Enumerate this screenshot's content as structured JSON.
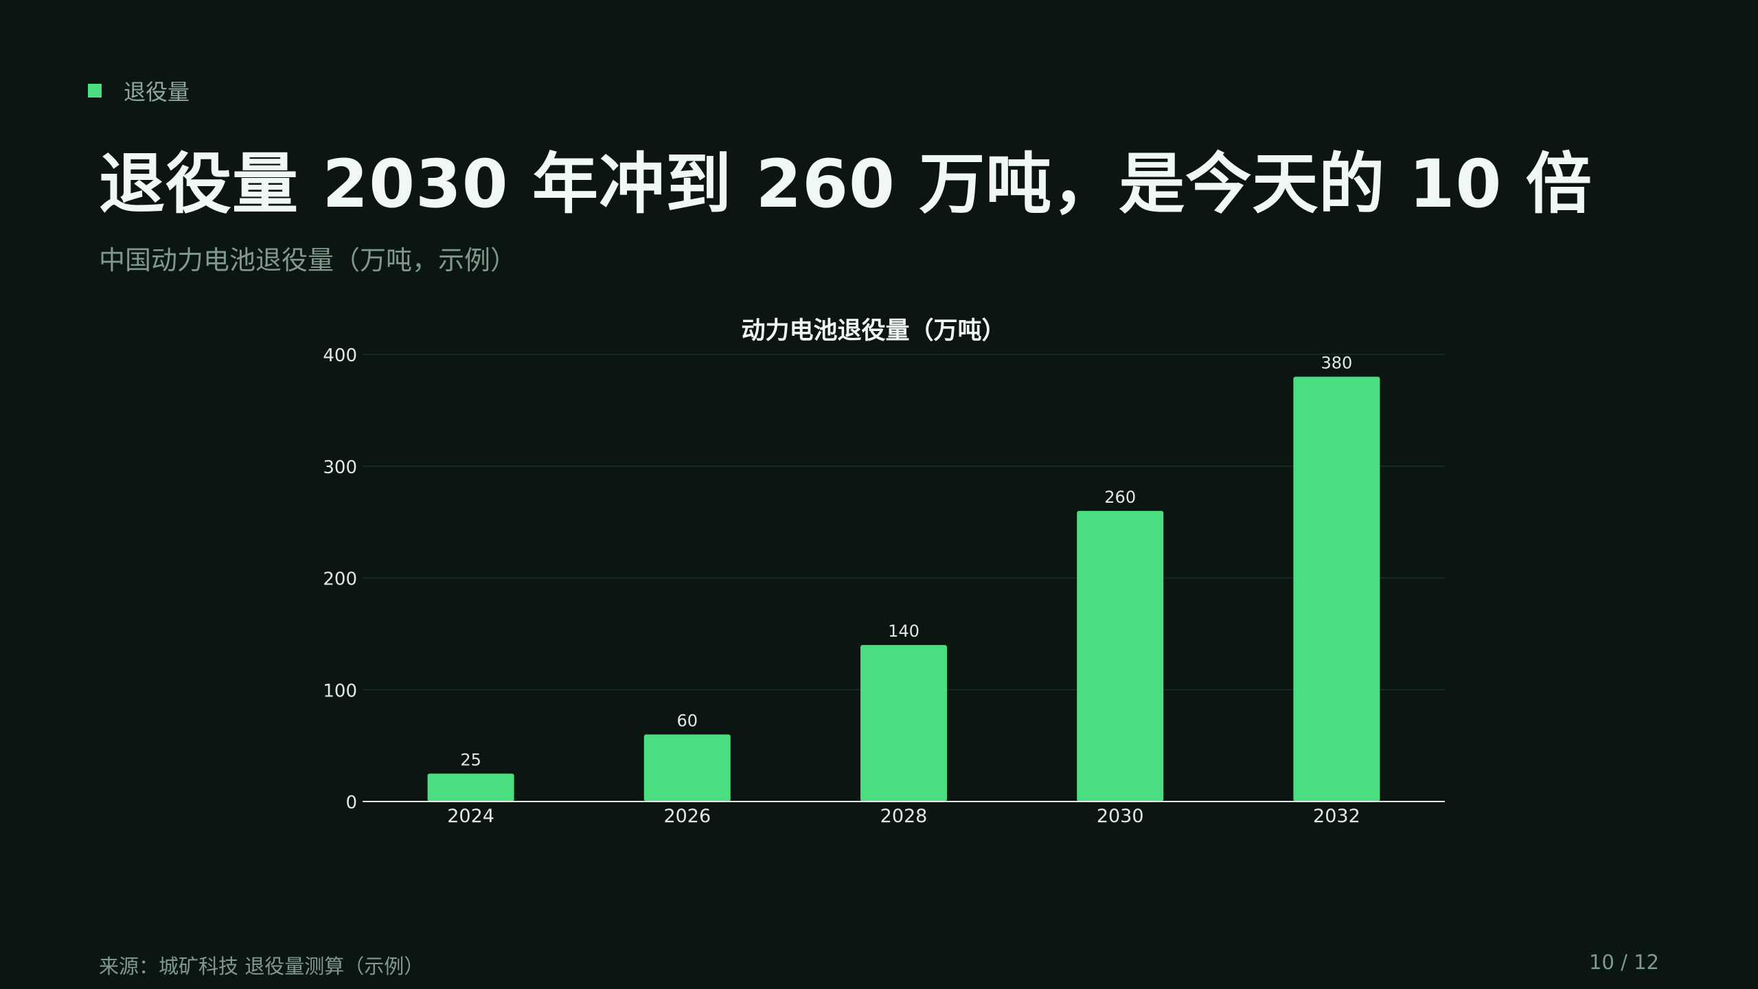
{
  "header": {
    "tag": "退役量",
    "title": "退役量 2030 年冲到 260 万吨，是今天的 10 倍",
    "subtitle": "中国动力电池退役量（万吨，示例）"
  },
  "footer": {
    "source": "来源：城矿科技 退役量测算（示例）",
    "page": "10 / 12"
  },
  "colors": {
    "background": "#0b1613",
    "accent": "#4ade80",
    "muted_text": "#7f9a8c"
  },
  "chart_data": {
    "type": "bar",
    "title": "动力电池退役量（万吨）",
    "categories": [
      "2024",
      "2026",
      "2028",
      "2030",
      "2032"
    ],
    "values": [
      25,
      60,
      140,
      260,
      380
    ],
    "ylim": [
      0,
      400
    ],
    "yticks": [
      0,
      100,
      200,
      300,
      400
    ],
    "xlabel": "",
    "ylabel": "",
    "grid": true,
    "data_labels": true,
    "bar_color": "#4ade80"
  }
}
